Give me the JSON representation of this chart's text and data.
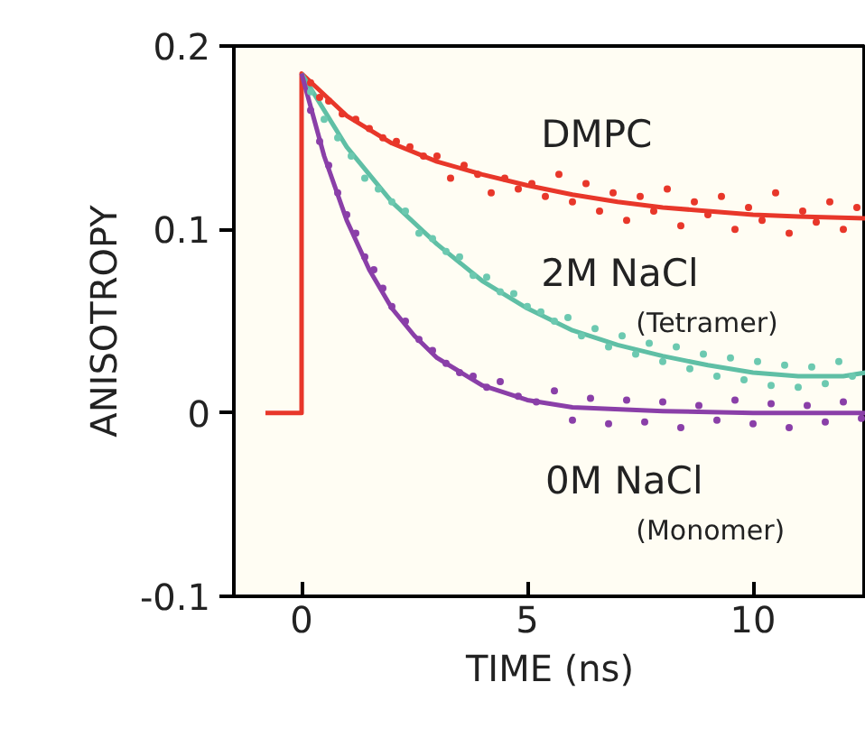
{
  "chart_data": {
    "type": "scatter",
    "xlabel": "TIME (ns)",
    "ylabel": "ANISOTROPY",
    "xlim": [
      -1.5,
      12.5
    ],
    "ylim": [
      -0.1,
      0.2
    ],
    "xticks": [
      0,
      5,
      10
    ],
    "yticks": [
      -0.1,
      0,
      0.1,
      0.2
    ],
    "grid": false,
    "series": [
      {
        "marker": "circle",
        "color": "#e8372a",
        "x": [
          0.2,
          0.4,
          0.6,
          0.9,
          1.2,
          1.5,
          1.8,
          2.1,
          2.4,
          2.7,
          3.0,
          3.3,
          3.6,
          3.9,
          4.2,
          4.5,
          4.8,
          5.1,
          5.4,
          5.7,
          6.0,
          6.3,
          6.6,
          6.9,
          7.2,
          7.5,
          7.8,
          8.1,
          8.4,
          8.7,
          9.0,
          9.3,
          9.6,
          9.9,
          10.2,
          10.5,
          10.8,
          11.1,
          11.4,
          11.7,
          12.0,
          12.3
        ],
        "values": [
          0.18,
          0.172,
          0.17,
          0.163,
          0.16,
          0.155,
          0.15,
          0.148,
          0.145,
          0.14,
          0.14,
          0.128,
          0.135,
          0.13,
          0.12,
          0.128,
          0.122,
          0.125,
          0.118,
          0.13,
          0.115,
          0.125,
          0.11,
          0.12,
          0.105,
          0.118,
          0.11,
          0.122,
          0.102,
          0.115,
          0.108,
          0.118,
          0.1,
          0.112,
          0.105,
          0.12,
          0.098,
          0.11,
          0.104,
          0.115,
          0.1,
          0.112
        ]
      },
      {
        "marker": "circle",
        "color": "#6cc9b0",
        "x": [
          0.2,
          0.5,
          0.8,
          1.1,
          1.4,
          1.7,
          2.0,
          2.3,
          2.6,
          2.9,
          3.2,
          3.5,
          3.8,
          4.1,
          4.4,
          4.7,
          5.0,
          5.3,
          5.6,
          5.9,
          6.2,
          6.5,
          6.8,
          7.1,
          7.4,
          7.7,
          8.0,
          8.3,
          8.6,
          8.9,
          9.2,
          9.5,
          9.8,
          10.1,
          10.4,
          10.7,
          11.0,
          11.3,
          11.6,
          11.9,
          12.2
        ],
        "values": [
          0.175,
          0.16,
          0.15,
          0.14,
          0.128,
          0.122,
          0.115,
          0.11,
          0.098,
          0.095,
          0.088,
          0.085,
          0.075,
          0.074,
          0.066,
          0.065,
          0.058,
          0.055,
          0.05,
          0.052,
          0.042,
          0.046,
          0.036,
          0.042,
          0.032,
          0.038,
          0.028,
          0.036,
          0.024,
          0.032,
          0.02,
          0.03,
          0.018,
          0.028,
          0.015,
          0.026,
          0.014,
          0.025,
          0.016,
          0.028,
          0.02
        ]
      },
      {
        "marker": "circle",
        "color": "#8a3fa8",
        "x": [
          0.2,
          0.4,
          0.6,
          0.8,
          1.0,
          1.2,
          1.4,
          1.6,
          1.8,
          2.0,
          2.3,
          2.6,
          2.9,
          3.2,
          3.5,
          3.8,
          4.1,
          4.4,
          4.8,
          5.2,
          5.6,
          6.0,
          6.4,
          6.8,
          7.2,
          7.6,
          8.0,
          8.4,
          8.8,
          9.2,
          9.6,
          10.0,
          10.4,
          10.8,
          11.2,
          11.6,
          12.0,
          12.4
        ],
        "values": [
          0.165,
          0.148,
          0.135,
          0.12,
          0.108,
          0.098,
          0.085,
          0.078,
          0.068,
          0.058,
          0.05,
          0.04,
          0.034,
          0.027,
          0.022,
          0.02,
          0.014,
          0.017,
          0.009,
          0.006,
          0.012,
          -0.004,
          0.008,
          -0.006,
          0.007,
          -0.005,
          0.006,
          -0.008,
          0.004,
          -0.004,
          0.007,
          -0.006,
          0.005,
          -0.008,
          0.004,
          -0.005,
          0.006,
          -0.003
        ]
      },
      {
        "type": "line",
        "color": "#e8372a",
        "x": [
          -0.8,
          0,
          0,
          1,
          2,
          3,
          4,
          5,
          6,
          7,
          8,
          9,
          10,
          11,
          12.5
        ],
        "values": [
          0,
          0,
          0.185,
          0.162,
          0.147,
          0.137,
          0.13,
          0.124,
          0.119,
          0.115,
          0.112,
          0.11,
          0.108,
          0.107,
          0.106
        ]
      },
      {
        "type": "line",
        "color": "#5fbfa5",
        "x": [
          0,
          1,
          2,
          3,
          4,
          5,
          6,
          7,
          8,
          9,
          10,
          11,
          12,
          12.5
        ],
        "values": [
          0.185,
          0.145,
          0.115,
          0.092,
          0.072,
          0.057,
          0.045,
          0.037,
          0.031,
          0.026,
          0.022,
          0.02,
          0.02,
          0.022
        ]
      },
      {
        "type": "line",
        "color": "#8a3fa8",
        "x": [
          0,
          0.5,
          1,
          1.5,
          2,
          2.5,
          3,
          4,
          5,
          6,
          8,
          10,
          12.5
        ],
        "values": [
          0.185,
          0.14,
          0.105,
          0.078,
          0.057,
          0.042,
          0.03,
          0.015,
          0.007,
          0.003,
          0.001,
          0,
          0
        ]
      }
    ],
    "annotations": [
      "DMPC",
      "2M NaCl",
      "(Tetramer)",
      "0M NaCl",
      "(Monomer)"
    ]
  }
}
